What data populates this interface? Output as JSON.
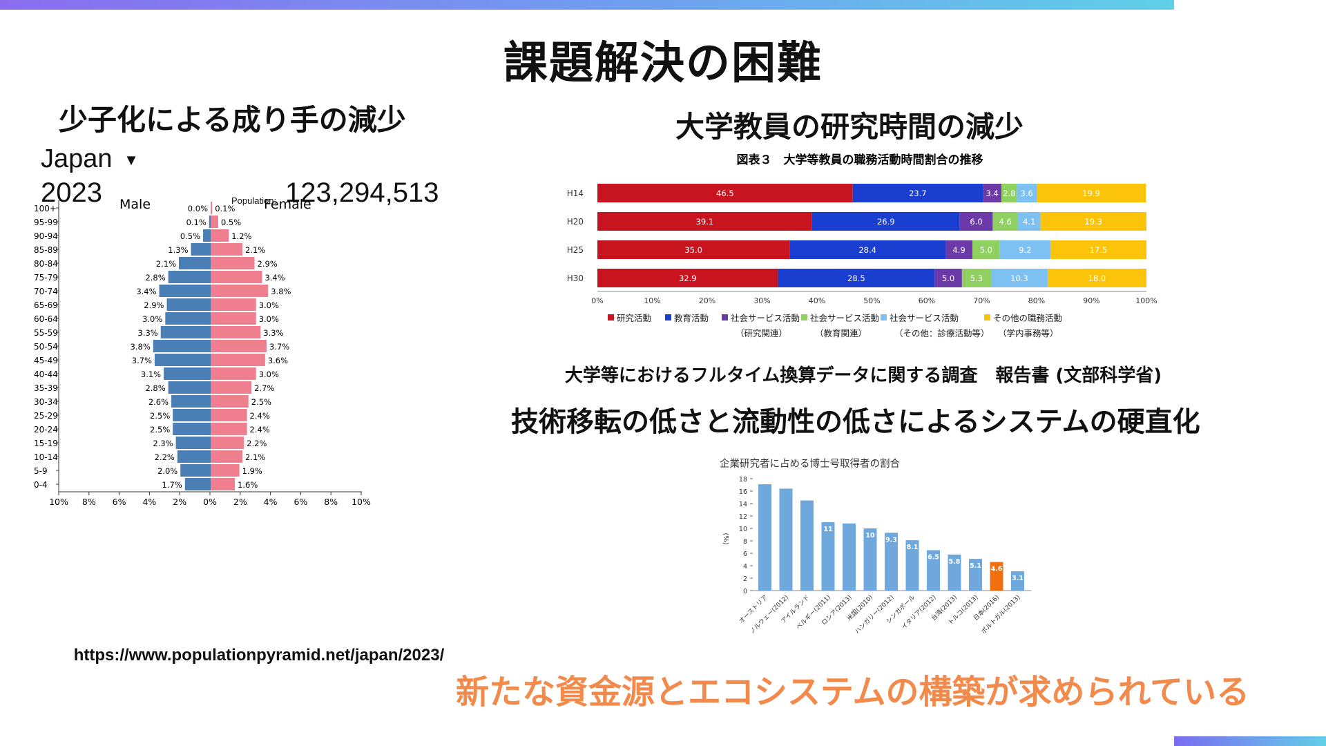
{
  "page": {
    "title": "課題解決の困難",
    "left_heading": "少子化による成り手の減少",
    "right_heading": "大学教員の研究時間の減少",
    "bar_source": "大学等におけるフルタイム換算データに関する調査　報告書 (文部科学省)",
    "tech_heading": "技術移転の低さと流動性の低さによるシステムの硬直化",
    "pyramid_source_url": "https://www.populationpyramid.net/japan/2023/",
    "conclusion": "新たな資金源とエコシステムの構築が求められている"
  },
  "pyramid": {
    "country": "Japan",
    "dropdown_icon": "caret-down-icon",
    "year": "2023",
    "population_label": "Population:",
    "population": "123,294,513",
    "male_label": "Male",
    "female_label": "Female",
    "male_color": "#4a7fb5",
    "female_color": "#ef7f8f"
  },
  "chart_data": [
    {
      "type": "bar",
      "orientation": "horizontal-diverging",
      "categories": [
        "100+",
        "95-99",
        "90-94",
        "85-89",
        "80-84",
        "75-79",
        "70-74",
        "65-69",
        "60-64",
        "55-59",
        "50-54",
        "45-49",
        "40-44",
        "35-39",
        "30-34",
        "25-29",
        "20-24",
        "15-19",
        "10-14",
        "5-9",
        "0-4"
      ],
      "series": [
        {
          "name": "Male",
          "values": [
            0.0,
            0.1,
            0.5,
            1.3,
            2.1,
            2.8,
            3.4,
            2.9,
            3.0,
            3.3,
            3.8,
            3.7,
            3.1,
            2.8,
            2.6,
            2.5,
            2.5,
            2.3,
            2.2,
            2.0,
            1.7
          ]
        },
        {
          "name": "Female",
          "values": [
            0.1,
            0.5,
            1.2,
            2.1,
            2.9,
            3.4,
            3.8,
            3.0,
            3.0,
            3.3,
            3.7,
            3.6,
            3.0,
            2.7,
            2.5,
            2.4,
            2.4,
            2.2,
            2.1,
            1.9,
            1.6
          ]
        }
      ],
      "x_ticks": [
        "10%",
        "8%",
        "6%",
        "4%",
        "2%",
        "0%",
        "2%",
        "4%",
        "6%",
        "8%",
        "10%"
      ],
      "xlim": [
        -10,
        10
      ]
    },
    {
      "type": "bar",
      "orientation": "horizontal-stacked-100",
      "title": "図表３　大学等教員の職務活動時間割合の推移",
      "categories": [
        "H14",
        "H20",
        "H25",
        "H30"
      ],
      "series": [
        {
          "name": "研究活動",
          "sub": "",
          "color": "#c8141e",
          "values": [
            46.5,
            39.1,
            35.0,
            32.9
          ]
        },
        {
          "name": "教育活動",
          "sub": "",
          "color": "#1a3ecf",
          "values": [
            23.7,
            26.9,
            28.4,
            28.5
          ]
        },
        {
          "name": "社会サービス活動",
          "sub": "（研究関連）",
          "color": "#6b3aa8",
          "values": [
            3.4,
            6.0,
            4.9,
            5.0
          ]
        },
        {
          "name": "社会サービス活動",
          "sub": "（教育関連）",
          "color": "#8fd060",
          "values": [
            2.8,
            4.6,
            5.0,
            5.3
          ]
        },
        {
          "name": "社会サービス活動",
          "sub": "（その他：診療活動等）",
          "color": "#7cc1f2",
          "values": [
            3.6,
            4.1,
            9.2,
            10.3
          ]
        },
        {
          "name": "その他の職務活動",
          "sub": "（学内事務等）",
          "color": "#fbc40a",
          "values": [
            19.9,
            19.3,
            17.5,
            18.0
          ]
        }
      ],
      "x_ticks": [
        "0%",
        "10%",
        "20%",
        "30%",
        "40%",
        "50%",
        "60%",
        "70%",
        "80%",
        "90%",
        "100%"
      ],
      "xlim": [
        0,
        100
      ]
    },
    {
      "type": "bar",
      "title": "企業研究者に占める博士号取得者の割合",
      "ylabel": "(%)",
      "ylim": [
        0,
        18
      ],
      "y_ticks": [
        "0",
        "2",
        "4",
        "6",
        "8",
        "10",
        "12",
        "14",
        "16",
        "18"
      ],
      "categories": [
        "オーストリア",
        "ノルウェー(2012)",
        "アイルランド",
        "ベルギー(2011)",
        "ロシア(2013)",
        "米国(2010)",
        "ハンガリー(2012)",
        "シンガポール",
        "イタリア(2012)",
        "台湾(2013)",
        "トルコ(2013)",
        "日本(2016)",
        "ポルトガル(2013)"
      ],
      "values": [
        17.1,
        16.4,
        14.5,
        11,
        10.8,
        10,
        9.3,
        8.1,
        6.5,
        5.8,
        5.1,
        4.6,
        3.1
      ],
      "data_labels": [
        "",
        "",
        "",
        "11",
        "",
        "10",
        "9.3",
        "8.1",
        "6.5",
        "5.8",
        "5.1",
        "4.6",
        "3.1"
      ],
      "colors": [
        "#6fa8dc",
        "#6fa8dc",
        "#6fa8dc",
        "#6fa8dc",
        "#6fa8dc",
        "#6fa8dc",
        "#6fa8dc",
        "#6fa8dc",
        "#6fa8dc",
        "#6fa8dc",
        "#6fa8dc",
        "#f0700f",
        "#6fa8dc"
      ]
    }
  ]
}
